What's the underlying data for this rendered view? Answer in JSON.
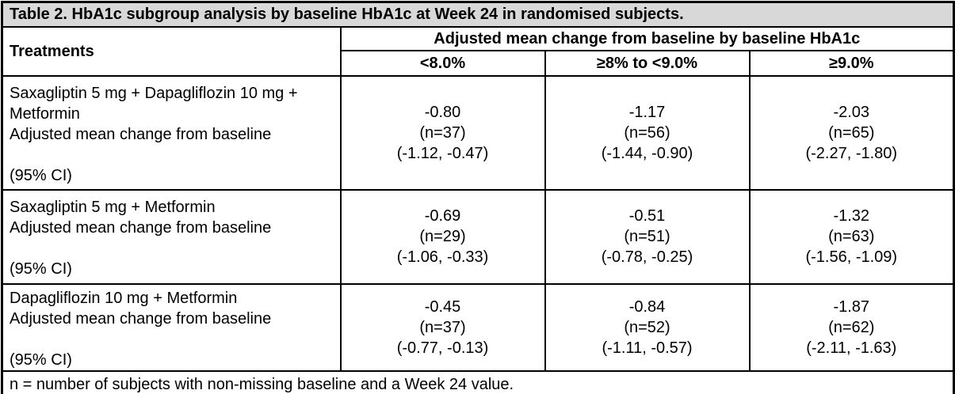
{
  "table": {
    "title": "Table 2. HbA1c subgroup analysis by baseline HbA1c at Week 24 in randomised subjects.",
    "header": {
      "treatments_label": "Treatments",
      "group_header": "Adjusted mean change from baseline by baseline HbA1c",
      "subheaders": [
        "<8.0%",
        "≥8% to <9.0%",
        "≥9.0%"
      ]
    },
    "rows": [
      {
        "name": "Saxagliptin 5 mg + Dapagliflozin 10 mg + Metformin",
        "measure_label": "Adjusted mean change from baseline",
        "ci_label": "(95% CI)",
        "cells": [
          {
            "value": "-0.80",
            "n": "(n=37)",
            "ci": "(-1.12, -0.47)"
          },
          {
            "value": "-1.17",
            "n": "(n=56)",
            "ci": "(-1.44, -0.90)"
          },
          {
            "value": "-2.03",
            "n": "(n=65)",
            "ci": "(-2.27, -1.80)"
          }
        ]
      },
      {
        "name": "Saxagliptin 5 mg + Metformin",
        "measure_label": "Adjusted mean change from baseline",
        "ci_label": "(95% CI)",
        "cells": [
          {
            "value": "-0.69",
            "n": "(n=29)",
            "ci": "(-1.06, -0.33)"
          },
          {
            "value": "-0.51",
            "n": "(n=51)",
            "ci": "(-0.78, -0.25)"
          },
          {
            "value": "-1.32",
            "n": "(n=63)",
            "ci": "(-1.56, -1.09)"
          }
        ]
      },
      {
        "name": "Dapagliflozin 10 mg + Metformin",
        "measure_label": "Adjusted mean change from baseline",
        "ci_label": "(95% CI)",
        "cells": [
          {
            "value": "-0.45",
            "n": "(n=37)",
            "ci": "(-0.77, -0.13)"
          },
          {
            "value": "-0.84",
            "n": "(n=52)",
            "ci": "(-1.11, -0.57)"
          },
          {
            "value": "-1.87",
            "n": "(n=62)",
            "ci": "(-2.11, -1.63)"
          }
        ]
      }
    ],
    "footnote": "n = number of subjects with non-missing baseline and a Week 24 value.",
    "colors": {
      "title_background": "#d8d8d8",
      "border": "#000000",
      "text": "#000000"
    }
  }
}
